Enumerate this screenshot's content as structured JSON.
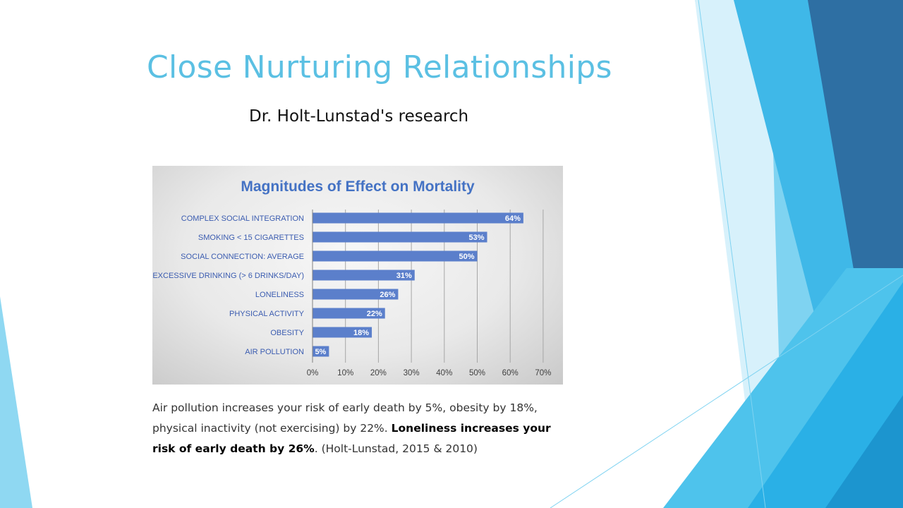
{
  "slide": {
    "title": "Close Nurturing Relationships",
    "subtitle": "Dr. Holt-Lunstad's research",
    "caption_part1": "Air pollution increases your risk of early death by 5%, obesity by 18%, physical inactivity (not exercising) by 22%. ",
    "caption_bold": "Loneliness increases your risk of early death by 26%",
    "caption_part2": ". (Holt-Lunstad, 2015 & 2010)"
  },
  "colors": {
    "title": "#5bc0e3",
    "bar": "#5b7fcb",
    "chart_title": "#4472c4",
    "category_label": "#3b5cb0",
    "deco_dark": "#2e6fa3",
    "deco_mid": "#2ab0e6",
    "deco_light": "#7fd3f1"
  },
  "chart_data": {
    "type": "bar",
    "orientation": "horizontal",
    "title": "Magnitudes of Effect on Mortality",
    "categories": [
      "COMPLEX SOCIAL INTEGRATION",
      "SMOKING < 15 CIGARETTES",
      "SOCIAL CONNECTION: AVERAGE",
      "EXCESSIVE DRINKING (> 6 DRINKS/DAY)",
      "LONELINESS",
      "PHYSICAL ACTIVITY",
      "OBESITY",
      "AIR POLLUTION"
    ],
    "values": [
      64,
      53,
      50,
      31,
      26,
      22,
      18,
      5
    ],
    "value_labels": [
      "64%",
      "53%",
      "50%",
      "31%",
      "26%",
      "22%",
      "18%",
      "5%"
    ],
    "xlim": [
      0,
      70
    ],
    "x_ticks": [
      0,
      10,
      20,
      30,
      40,
      50,
      60,
      70
    ],
    "x_tick_labels": [
      "0%",
      "10%",
      "20%",
      "30%",
      "40%",
      "50%",
      "60%",
      "70%"
    ],
    "grid": "vertical",
    "legend": "none"
  }
}
